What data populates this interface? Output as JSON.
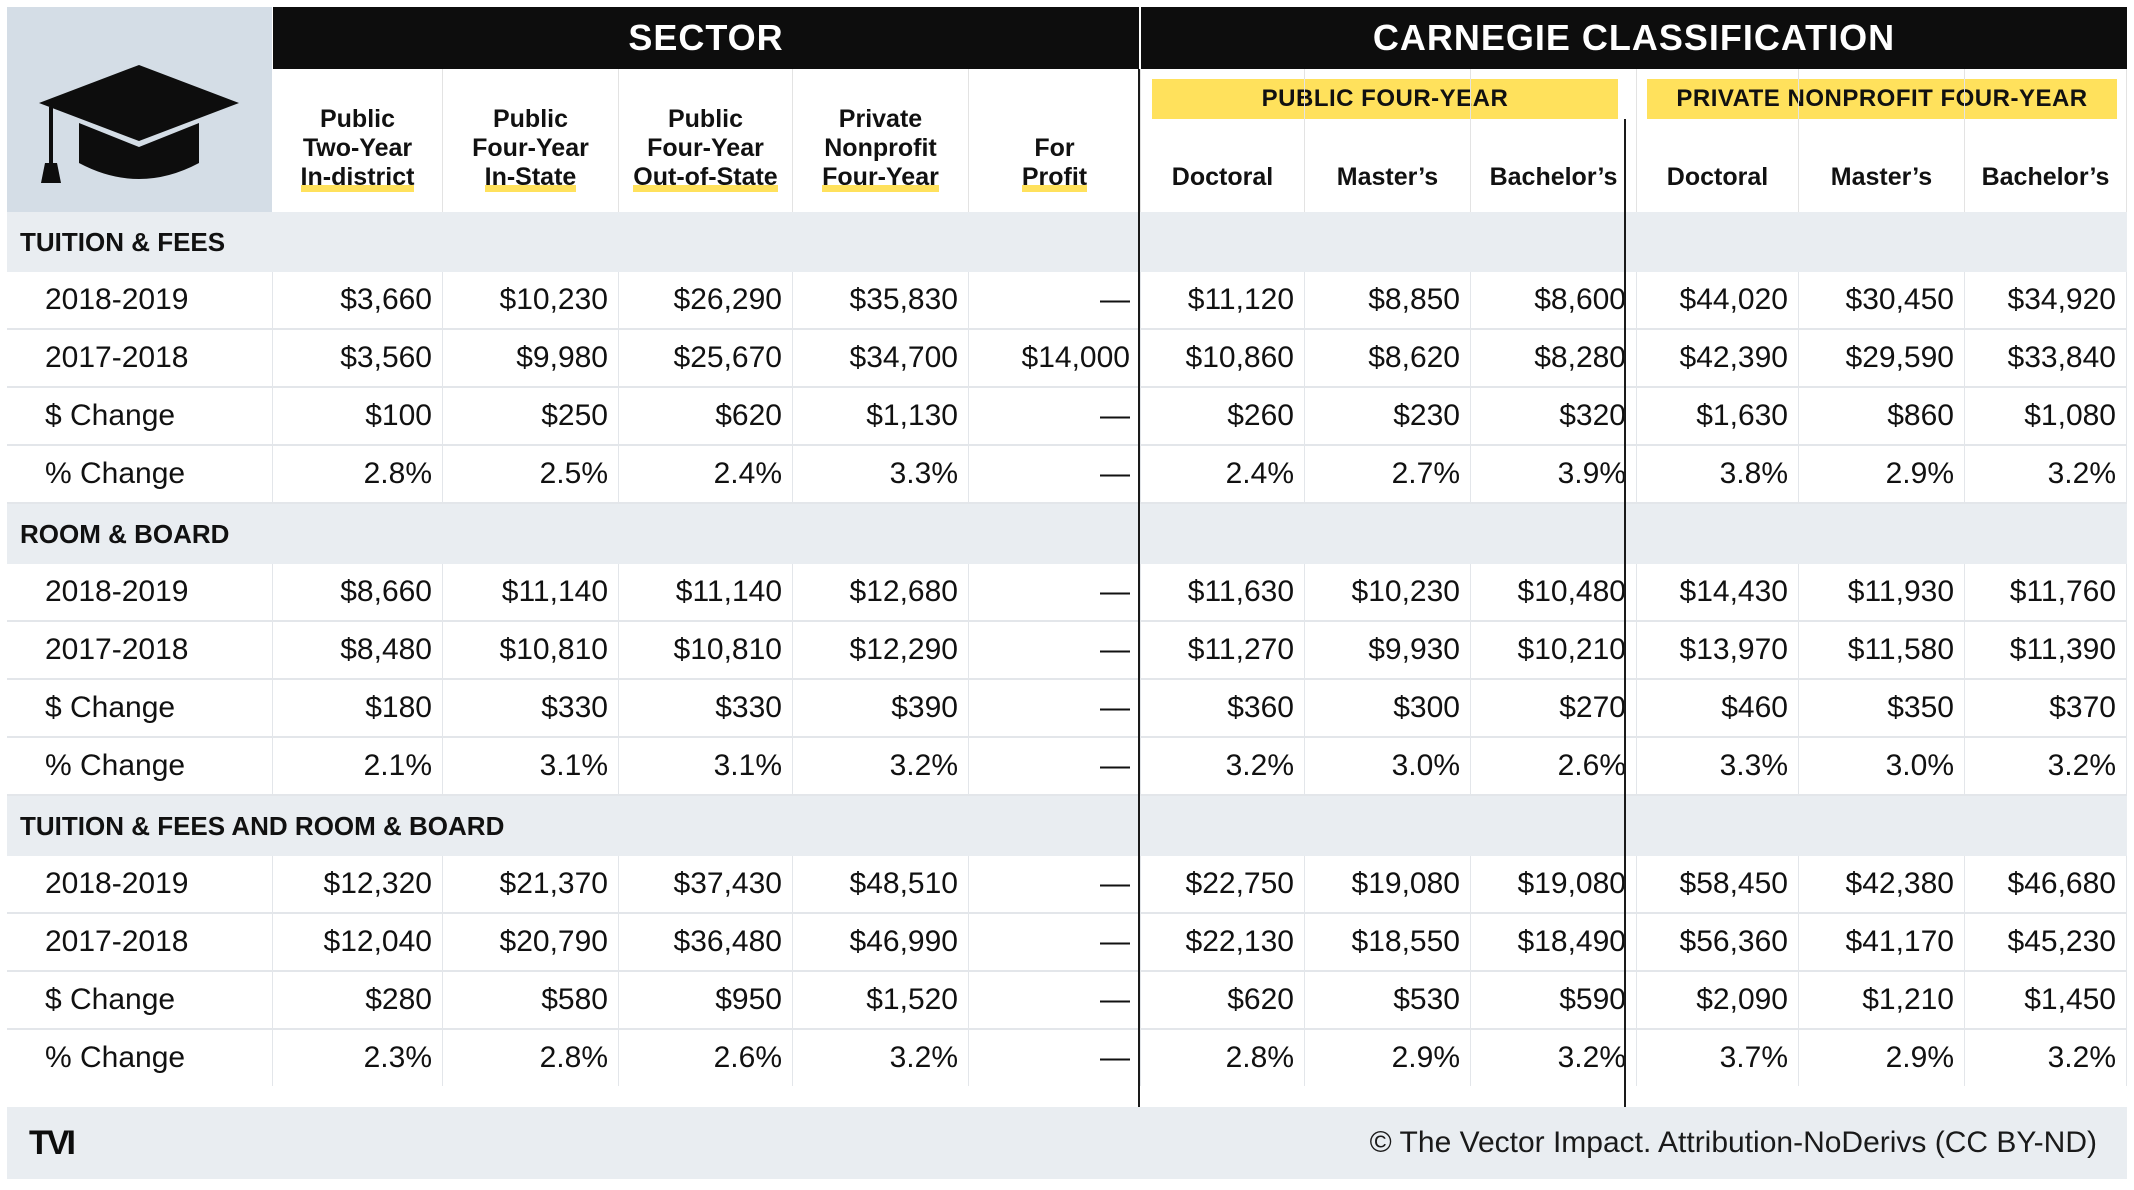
{
  "headers": {
    "sector": "SECTOR",
    "carnegie": "CARNEGIE CLASSIFICATION",
    "public_four_year": "PUBLIC FOUR-YEAR",
    "private_nonprofit_four_year": "PRIVATE NONPROFIT FOUR-YEAR"
  },
  "columns": [
    {
      "lines": [
        "Public",
        "Two-Year"
      ],
      "underlined": "In-district"
    },
    {
      "lines": [
        "Public",
        "Four-Year"
      ],
      "underlined": "In-State"
    },
    {
      "lines": [
        "Public",
        "Four-Year"
      ],
      "underlined": "Out-of-State"
    },
    {
      "lines": [
        "Private",
        "Nonprofit"
      ],
      "underlined": "Four-Year"
    },
    {
      "lines": [
        "For"
      ],
      "underlined": "Profit"
    },
    {
      "lines": [],
      "underlined": "Doctoral",
      "plain": true
    },
    {
      "lines": [],
      "underlined": "Master’s",
      "plain": true
    },
    {
      "lines": [],
      "underlined": "Bachelor’s",
      "plain": true
    },
    {
      "lines": [],
      "underlined": "Doctoral",
      "plain": true
    },
    {
      "lines": [],
      "underlined": "Master’s",
      "plain": true
    },
    {
      "lines": [],
      "underlined": "Bachelor’s",
      "plain": true
    }
  ],
  "sections": [
    {
      "title": "TUITION & FEES",
      "rows": [
        {
          "label": "2018-2019",
          "values": [
            "$3,660",
            "$10,230",
            "$26,290",
            "$35,830",
            "—",
            "$11,120",
            "$8,850",
            "$8,600",
            "$44,020",
            "$30,450",
            "$34,920"
          ]
        },
        {
          "label": "2017-2018",
          "values": [
            "$3,560",
            "$9,980",
            "$25,670",
            "$34,700",
            "$14,000",
            "$10,860",
            "$8,620",
            "$8,280",
            "$42,390",
            "$29,590",
            "$33,840"
          ]
        },
        {
          "label": "$ Change",
          "values": [
            "$100",
            "$250",
            "$620",
            "$1,130",
            "—",
            "$260",
            "$230",
            "$320",
            "$1,630",
            "$860",
            "$1,080"
          ]
        },
        {
          "label": "% Change",
          "values": [
            "2.8%",
            "2.5%",
            "2.4%",
            "3.3%",
            "—",
            "2.4%",
            "2.7%",
            "3.9%",
            "3.8%",
            "2.9%",
            "3.2%"
          ]
        }
      ]
    },
    {
      "title": "ROOM & BOARD",
      "rows": [
        {
          "label": "2018-2019",
          "values": [
            "$8,660",
            "$11,140",
            "$11,140",
            "$12,680",
            "—",
            "$11,630",
            "$10,230",
            "$10,480",
            "$14,430",
            "$11,930",
            "$11,760"
          ]
        },
        {
          "label": "2017-2018",
          "values": [
            "$8,480",
            "$10,810",
            "$10,810",
            "$12,290",
            "—",
            "$11,270",
            "$9,930",
            "$10,210",
            "$13,970",
            "$11,580",
            "$11,390"
          ]
        },
        {
          "label": "$ Change",
          "values": [
            "$180",
            "$330",
            "$330",
            "$390",
            "—",
            "$360",
            "$300",
            "$270",
            "$460",
            "$350",
            "$370"
          ]
        },
        {
          "label": "% Change",
          "values": [
            "2.1%",
            "3.1%",
            "3.1%",
            "3.2%",
            "—",
            "3.2%",
            "3.0%",
            "2.6%",
            "3.3%",
            "3.0%",
            "3.2%"
          ]
        }
      ]
    },
    {
      "title": "TUITION & FEES AND ROOM & BOARD",
      "rows": [
        {
          "label": "2018-2019",
          "values": [
            "$12,320",
            "$21,370",
            "$37,430",
            "$48,510",
            "—",
            "$22,750",
            "$19,080",
            "$19,080",
            "$58,450",
            "$42,380",
            "$46,680"
          ]
        },
        {
          "label": "2017-2018",
          "values": [
            "$12,040",
            "$20,790",
            "$36,480",
            "$46,990",
            "—",
            "$22,130",
            "$18,550",
            "$18,490",
            "$56,360",
            "$41,170",
            "$45,230"
          ]
        },
        {
          "label": "$ Change",
          "values": [
            "$280",
            "$580",
            "$950",
            "$1,520",
            "—",
            "$620",
            "$530",
            "$590",
            "$2,090",
            "$1,210",
            "$1,450"
          ]
        },
        {
          "label": "% Change",
          "values": [
            "2.3%",
            "2.8%",
            "2.6%",
            "3.2%",
            "—",
            "2.8%",
            "2.9%",
            "3.2%",
            "3.7%",
            "2.9%",
            "3.2%"
          ]
        }
      ]
    }
  ],
  "footer": {
    "logo": "TVI",
    "copyright": "© The Vector Impact. Attribution-NoDerivs (CC BY-ND)"
  },
  "icons": {
    "top_left": "graduation-cap-icon"
  },
  "colors": {
    "accent_yellow": "#ffe15c",
    "header_black": "#0d0d0d",
    "section_gray": "#e9edf1",
    "icon_bg": "#d4dde6"
  }
}
